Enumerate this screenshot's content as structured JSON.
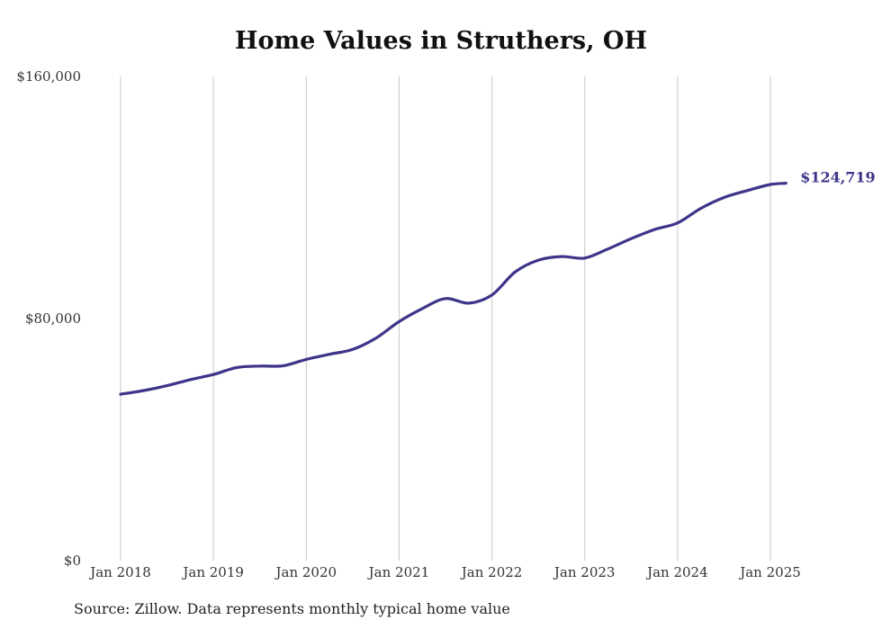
{
  "chart_data": {
    "type": "line",
    "title": "Home Values in Struthers, OH",
    "xlabel": "",
    "ylabel": "",
    "ylim": [
      0,
      160000
    ],
    "yticks": [
      {
        "value": 0,
        "label": "$0"
      },
      {
        "value": 80000,
        "label": "$80,000"
      },
      {
        "value": 160000,
        "label": "$160,000"
      }
    ],
    "xticks": [
      {
        "value": "2018-01",
        "label": "Jan 2018"
      },
      {
        "value": "2019-01",
        "label": "Jan 2019"
      },
      {
        "value": "2020-01",
        "label": "Jan 2020"
      },
      {
        "value": "2021-01",
        "label": "Jan 2021"
      },
      {
        "value": "2022-01",
        "label": "Jan 2022"
      },
      {
        "value": "2023-01",
        "label": "Jan 2023"
      },
      {
        "value": "2024-01",
        "label": "Jan 2024"
      },
      {
        "value": "2025-01",
        "label": "Jan 2025"
      }
    ],
    "grid": "vertical",
    "line_color": "#3d3589",
    "series": [
      {
        "name": "",
        "x": [
          "2018-01",
          "2018-04",
          "2018-07",
          "2018-10",
          "2019-01",
          "2019-04",
          "2019-07",
          "2019-10",
          "2020-01",
          "2020-04",
          "2020-07",
          "2020-10",
          "2021-01",
          "2021-04",
          "2021-07",
          "2021-10",
          "2022-01",
          "2022-04",
          "2022-07",
          "2022-10",
          "2023-01",
          "2023-04",
          "2023-07",
          "2023-10",
          "2024-01",
          "2024-04",
          "2024-07",
          "2024-10",
          "2025-01",
          "2025-03"
        ],
        "y": [
          55000,
          56200,
          57800,
          59800,
          61500,
          63800,
          64300,
          64400,
          66500,
          68200,
          69800,
          73500,
          79000,
          83300,
          86600,
          85100,
          87800,
          95400,
          99300,
          100500,
          100000,
          103000,
          106400,
          109400,
          111600,
          116400,
          120000,
          122300,
          124300,
          124719
        ]
      }
    ],
    "end_label": "$124,719"
  },
  "source_note": "Source: Zillow. Data represents monthly typical home value"
}
